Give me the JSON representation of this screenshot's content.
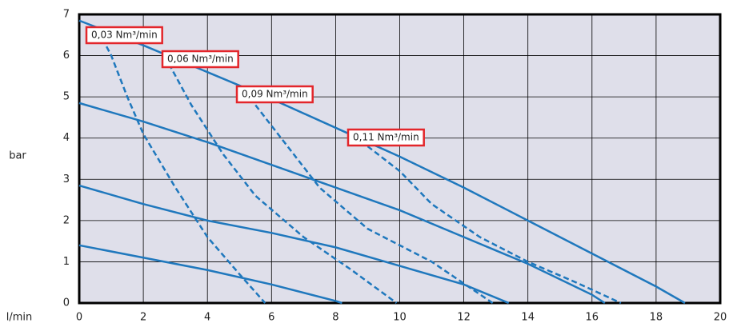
{
  "chart_data": {
    "type": "line",
    "xlabel": "l/min",
    "ylabel": "bar",
    "xlim": [
      0,
      20
    ],
    "ylim": [
      0,
      7
    ],
    "xticks": [
      0,
      2,
      4,
      6,
      8,
      10,
      12,
      14,
      16,
      18,
      20
    ],
    "yticks": [
      0,
      1,
      2,
      3,
      4,
      5,
      6,
      7
    ],
    "grid": true,
    "color": "#1f78bd",
    "series": [
      {
        "style": "solid",
        "x": [
          0,
          2,
          4,
          6,
          8,
          10,
          12,
          14,
          16,
          18,
          18.9
        ],
        "values": [
          6.85,
          6.25,
          5.6,
          4.95,
          4.25,
          3.55,
          2.8,
          2.0,
          1.2,
          0.4,
          0
        ]
      },
      {
        "style": "solid",
        "x": [
          0,
          2,
          4,
          6,
          8,
          10,
          12,
          14,
          16,
          16.4
        ],
        "values": [
          4.85,
          4.4,
          3.9,
          3.35,
          2.8,
          2.25,
          1.6,
          0.95,
          0.2,
          0
        ]
      },
      {
        "style": "solid",
        "x": [
          0,
          2,
          4,
          6,
          8,
          10,
          12,
          13.4
        ],
        "values": [
          2.85,
          2.4,
          2.0,
          1.7,
          1.35,
          0.9,
          0.45,
          0
        ]
      },
      {
        "style": "solid",
        "x": [
          0,
          2,
          4,
          6,
          8,
          8.2
        ],
        "values": [
          1.4,
          1.1,
          0.8,
          0.45,
          0.05,
          0
        ]
      },
      {
        "name": "0,03 Nm³/min",
        "style": "dashed",
        "x": [
          0.6,
          1,
          1.5,
          2,
          3,
          4,
          5,
          5.8
        ],
        "values": [
          6.6,
          6.0,
          5.0,
          4.1,
          2.8,
          1.6,
          0.7,
          0
        ]
      },
      {
        "name": "0,06 Nm³/min",
        "style": "dashed",
        "x": [
          2.8,
          3.5,
          4.5,
          5.5,
          7,
          8.5,
          9.9
        ],
        "values": [
          5.8,
          4.8,
          3.6,
          2.6,
          1.6,
          0.8,
          0
        ]
      },
      {
        "name": "0,09 Nm³/min",
        "style": "dashed",
        "x": [
          5.5,
          6.5,
          7.5,
          9,
          11,
          12.9
        ],
        "values": [
          4.8,
          3.8,
          2.8,
          1.8,
          1.0,
          0
        ]
      },
      {
        "name": "0,11 Nm³/min",
        "style": "dashed",
        "x": [
          9,
          10,
          11,
          12.5,
          14,
          15.5,
          16.9
        ],
        "values": [
          3.8,
          3.2,
          2.4,
          1.6,
          1.0,
          0.5,
          0
        ]
      }
    ]
  }
}
